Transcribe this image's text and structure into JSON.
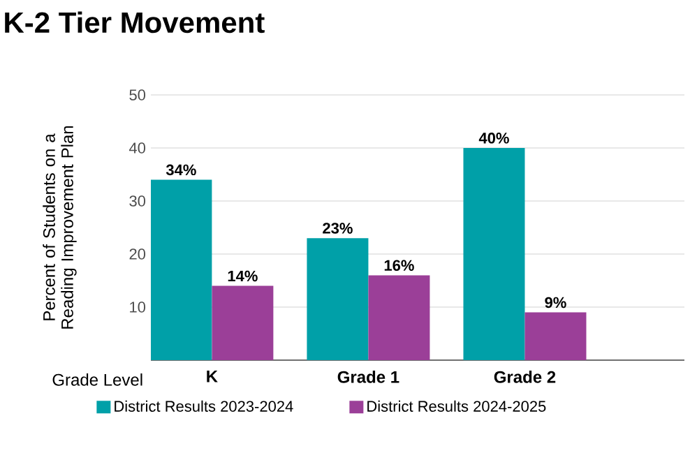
{
  "chart_data": {
    "type": "bar",
    "title": "K-2 Tier Movement",
    "ylabel": "Percent of Students on a Reading Improvement Plan",
    "xlabel": "Grade Level",
    "categories": [
      "K",
      "Grade 1",
      "Grade 2"
    ],
    "series": [
      {
        "name": "District Results 2023-2024",
        "color": "#00a0a8",
        "values": [
          34,
          23,
          40
        ],
        "value_labels": [
          "34%",
          "23%",
          "40%"
        ]
      },
      {
        "name": "District Results 2024-2025",
        "color": "#9b3f98",
        "values": [
          14,
          16,
          9
        ],
        "value_labels": [
          "14%",
          "16%",
          "9%"
        ]
      }
    ],
    "ylim": [
      0,
      50
    ],
    "yticks": [
      10,
      20,
      30,
      40,
      50
    ],
    "grid": "y",
    "legend": "bottom"
  }
}
